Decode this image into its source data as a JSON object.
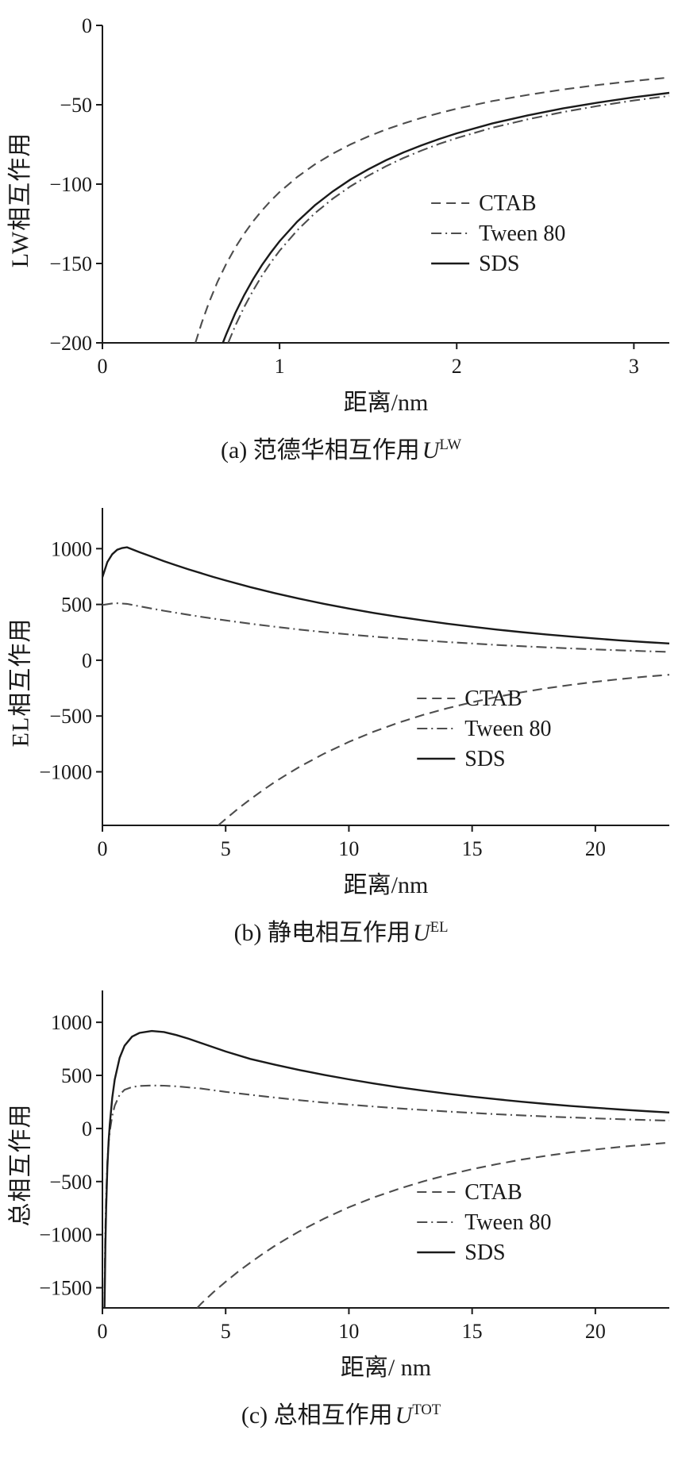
{
  "figure": {
    "background": "#ffffff",
    "axis_color": "#1a1a1a",
    "dash_gray": "#4d4d4d"
  },
  "chart_data": [
    {
      "type": "line",
      "panel": "a",
      "caption_prefix": "(a) 范德华相互作用",
      "caption_symbol": "U",
      "caption_sup": "LW",
      "xlabel": "距离/nm",
      "ylabel": "LW相互作用",
      "xlim": [
        0,
        3.2
      ],
      "ylim": [
        -200,
        0
      ],
      "xticks": [
        0,
        1,
        2,
        3
      ],
      "yticks": [
        0,
        -50,
        -100,
        -150,
        -200
      ],
      "grid": false,
      "legend_pos": [
        0.58,
        0.56
      ],
      "series": [
        {
          "name": "CTAB",
          "style": "dashed",
          "color": "#4d4d4d",
          "x": [
            0.525,
            0.56,
            0.6,
            0.65,
            0.7,
            0.75,
            0.8,
            0.85,
            0.9,
            0.95,
            1,
            1.1,
            1.2,
            1.3,
            1.4,
            1.5,
            1.6,
            1.7,
            1.8,
            1.9,
            2,
            2.2,
            2.4,
            2.6,
            2.8,
            3,
            3.2
          ],
          "y": [
            -200,
            -187.5,
            -175,
            -161.5,
            -150,
            -140,
            -131.3,
            -123.5,
            -116.7,
            -110.5,
            -105,
            -95.5,
            -87.5,
            -80.8,
            -75,
            -70,
            -65.6,
            -61.8,
            -58.3,
            -55.3,
            -52.5,
            -47.7,
            -43.8,
            -40.4,
            -37.5,
            -35,
            -32.8
          ]
        },
        {
          "name": "Tween 80",
          "style": "dashdot",
          "color": "#4d4d4d",
          "x": [
            0.71,
            0.75,
            0.8,
            0.85,
            0.9,
            0.95,
            1,
            1.1,
            1.2,
            1.3,
            1.4,
            1.5,
            1.6,
            1.7,
            1.8,
            1.9,
            2,
            2.2,
            2.4,
            2.6,
            2.8,
            3,
            3.2
          ],
          "y": [
            -200,
            -189.3,
            -177.5,
            -167.1,
            -157.8,
            -149.5,
            -142,
            -129.1,
            -118.3,
            -109.2,
            -101.4,
            -94.7,
            -88.8,
            -83.5,
            -78.9,
            -74.7,
            -71,
            -64.5,
            -59.2,
            -54.6,
            -50.7,
            -47.3,
            -44.4
          ]
        },
        {
          "name": "SDS",
          "style": "solid",
          "color": "#1a1a1a",
          "x": [
            0.68,
            0.7,
            0.75,
            0.8,
            0.85,
            0.9,
            0.95,
            1,
            1.1,
            1.2,
            1.3,
            1.4,
            1.5,
            1.6,
            1.7,
            1.8,
            1.9,
            2,
            2.2,
            2.4,
            2.6,
            2.8,
            3,
            3.2
          ],
          "y": [
            -200,
            -194.3,
            -181.3,
            -170,
            -160,
            -151.1,
            -143.2,
            -136,
            -123.6,
            -113.3,
            -104.6,
            -97.1,
            -90.7,
            -85,
            -80,
            -75.6,
            -71.6,
            -68,
            -61.8,
            -56.7,
            -52.3,
            -48.6,
            -45.3,
            -42.5
          ]
        }
      ]
    },
    {
      "type": "line",
      "panel": "b",
      "caption_prefix": "(b) 静电相互作用",
      "caption_symbol": "U",
      "caption_sup": "EL",
      "xlabel": "距离/nm",
      "ylabel": "EL相互作用",
      "xlim": [
        0,
        23
      ],
      "ylim": [
        -1480,
        1365
      ],
      "xticks": [
        0,
        5,
        10,
        15,
        20
      ],
      "yticks": [
        1000,
        500,
        0,
        -500,
        -1000
      ],
      "grid": false,
      "legend_pos": [
        0.555,
        0.6
      ],
      "series": [
        {
          "name": "CTAB",
          "style": "dashed",
          "color": "#4d4d4d",
          "x": [
            4.7,
            5,
            5.5,
            6,
            6.5,
            7,
            7.5,
            8,
            9,
            10,
            11,
            12,
            13,
            14,
            15,
            16,
            17,
            18,
            19,
            20,
            21,
            22,
            23
          ],
          "y": [
            -1480,
            -1423,
            -1331,
            -1246,
            -1166,
            -1090,
            -1021,
            -955,
            -836,
            -732,
            -641,
            -561,
            -491,
            -430,
            -376,
            -329,
            -288,
            -252,
            -221,
            -193,
            -169,
            -148,
            -130
          ]
        },
        {
          "name": "Tween 80",
          "style": "dashdot",
          "color": "#4d4d4d",
          "x": [
            0,
            0.5,
            1,
            1.5,
            2,
            2.5,
            3,
            4,
            5,
            6,
            7,
            8,
            9,
            10,
            11,
            12,
            13,
            14,
            15,
            16,
            17,
            18,
            19,
            20,
            21,
            22,
            23
          ],
          "y": [
            495,
            512,
            505,
            484,
            463,
            443,
            425,
            389,
            357,
            327,
            300,
            275,
            252,
            231,
            212,
            194,
            178,
            163,
            150,
            137,
            126,
            115,
            106,
            97,
            89,
            81,
            75
          ]
        },
        {
          "name": "SDS",
          "style": "solid",
          "color": "#1a1a1a",
          "x": [
            0,
            0.2,
            0.4,
            0.6,
            0.8,
            1,
            1.5,
            2,
            2.5,
            3,
            3.5,
            4,
            4.5,
            5,
            6,
            7,
            8,
            9,
            10,
            11,
            12,
            13,
            14,
            15,
            16,
            17,
            18,
            19,
            20,
            21,
            22,
            23
          ],
          "y": [
            745,
            880,
            950,
            990,
            1006,
            1012,
            969,
            928,
            888,
            850,
            814,
            780,
            746,
            715,
            655,
            601,
            551,
            505,
            463,
            424,
            389,
            357,
            327,
            300,
            275,
            252,
            231,
            212,
            194,
            178,
            163,
            150
          ]
        }
      ]
    },
    {
      "type": "line",
      "panel": "c",
      "caption_prefix": "(c) 总相互作用",
      "caption_symbol": "U",
      "caption_sup": "TOT",
      "xlabel": "距离/ nm",
      "ylabel": "总相互作用",
      "xlim": [
        0,
        23
      ],
      "ylim": [
        -1690,
        1300
      ],
      "xticks": [
        0,
        5,
        10,
        15,
        20
      ],
      "yticks": [
        1000,
        500,
        0,
        -500,
        -1000,
        -1500
      ],
      "grid": false,
      "legend_pos": [
        0.555,
        0.635
      ],
      "series": [
        {
          "name": "CTAB",
          "style": "dashed",
          "color": "#4d4d4d",
          "x": [
            3.85,
            4,
            4.5,
            5,
            5.5,
            6,
            6.5,
            7,
            7.5,
            8,
            9,
            10,
            11,
            12,
            13,
            14,
            15,
            16,
            17,
            18,
            19,
            20,
            21,
            22,
            23
          ],
          "y": [
            -1690,
            -1651,
            -1543,
            -1444,
            -1350,
            -1264,
            -1182,
            -1105,
            -1035,
            -968,
            -848,
            -742,
            -650,
            -570,
            -499,
            -437,
            -383,
            -336,
            -294,
            -258,
            -226,
            -198,
            -174,
            -153,
            -134
          ]
        },
        {
          "name": "Tween 80",
          "style": "dashdot",
          "color": "#4d4d4d",
          "x": [
            0.08,
            0.1,
            0.12,
            0.15,
            0.2,
            0.25,
            0.3,
            0.4,
            0.5,
            0.7,
            0.9,
            1.2,
            1.5,
            2,
            2.5,
            3,
            4,
            5,
            6,
            7,
            8,
            9,
            10,
            12,
            14,
            16,
            18,
            20,
            22,
            23
          ],
          "y": [
            -1690,
            -1270,
            -960,
            -640,
            -320,
            -140,
            -25,
            120,
            215,
            318,
            365,
            390,
            400,
            405,
            403,
            397,
            376,
            345,
            317,
            291,
            266,
            244,
            224,
            189,
            159,
            134,
            113,
            95,
            80,
            73
          ]
        },
        {
          "name": "SDS",
          "style": "solid",
          "color": "#1a1a1a",
          "x": [
            0.085,
            0.1,
            0.12,
            0.15,
            0.2,
            0.25,
            0.3,
            0.4,
            0.5,
            0.7,
            0.9,
            1.2,
            1.5,
            2,
            2.5,
            3,
            3.5,
            4,
            5,
            6,
            7,
            8,
            9,
            10,
            11,
            12,
            13,
            14,
            15,
            16,
            17,
            18,
            19,
            20,
            21,
            22,
            23
          ],
          "y": [
            -1690,
            -1450,
            -1110,
            -750,
            -370,
            -120,
            40,
            290,
            460,
            665,
            780,
            865,
            900,
            918,
            908,
            880,
            845,
            805,
            725,
            655,
            600,
            550,
            505,
            463,
            424,
            389,
            357,
            327,
            300,
            275,
            252,
            231,
            212,
            195,
            179,
            164,
            150
          ]
        }
      ]
    }
  ]
}
